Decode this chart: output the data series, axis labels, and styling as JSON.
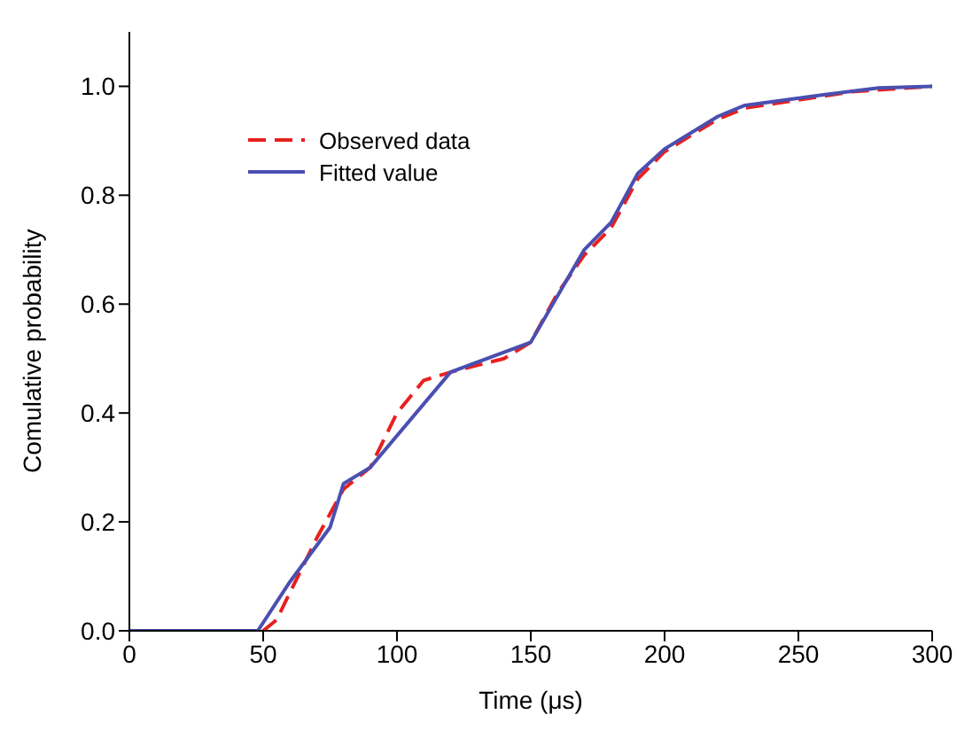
{
  "chart_data": {
    "type": "line",
    "xlabel": "Time (μs)",
    "ylabel": "Comulative probability",
    "xlim": [
      0,
      300
    ],
    "ylim": [
      0,
      1.1
    ],
    "xticks": [
      0,
      50,
      100,
      150,
      200,
      250,
      300
    ],
    "yticks": [
      {
        "value": 0,
        "label": "0.0"
      },
      0.2,
      0.4,
      0.6,
      0.8,
      {
        "value": 1,
        "label": "1.0"
      }
    ],
    "grid": false,
    "legend": "top left",
    "marker": "none",
    "series": [
      {
        "name": "Observed data",
        "color": "#e8201e",
        "line_style": "dashed",
        "x": [
          0,
          50,
          55,
          60,
          70,
          80,
          90,
          100,
          110,
          120,
          140,
          150,
          160,
          170,
          180,
          190,
          200,
          210,
          220,
          230,
          250,
          270,
          300
        ],
        "values": [
          0,
          0,
          0.02,
          0.07,
          0.17,
          0.26,
          0.3,
          0.4,
          0.46,
          0.475,
          0.5,
          0.53,
          0.62,
          0.69,
          0.74,
          0.83,
          0.88,
          0.91,
          0.94,
          0.96,
          0.975,
          0.99,
          1
        ]
      },
      {
        "name": "Fitted value",
        "color": "#4a4fb0",
        "line_style": "solid",
        "x": [
          0,
          48,
          60,
          75,
          80,
          90,
          120,
          150,
          170,
          180,
          190,
          200,
          220,
          230,
          260,
          280,
          300
        ],
        "values": [
          0,
          0,
          0.09,
          0.19,
          0.27,
          0.3,
          0.475,
          0.53,
          0.7,
          0.75,
          0.84,
          0.885,
          0.945,
          0.965,
          0.985,
          0.997,
          1
        ]
      }
    ]
  }
}
